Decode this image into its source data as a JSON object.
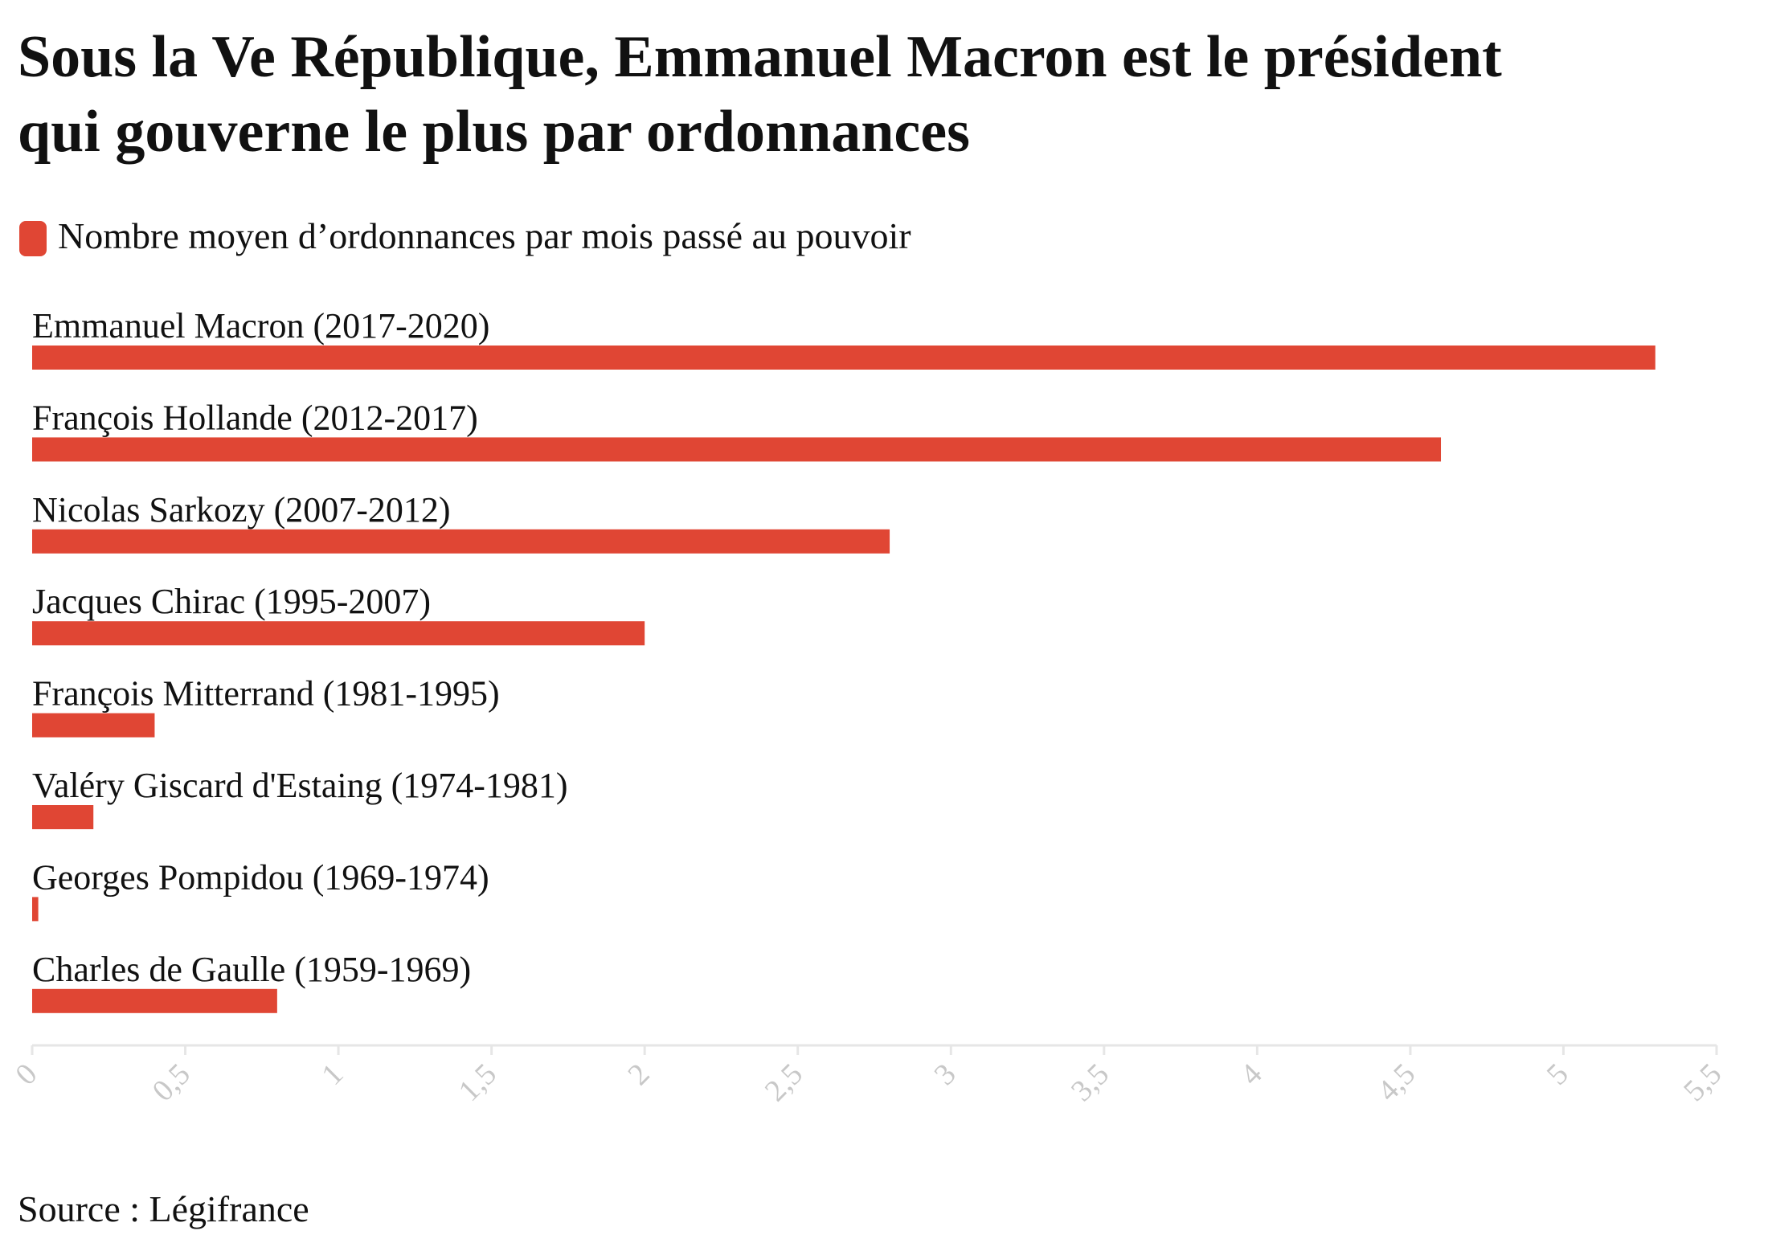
{
  "chart_data": {
    "type": "bar",
    "orientation": "horizontal",
    "title": "Sous la Ve République, Emmanuel Macron est le président",
    "title_line2": "qui gouverne le plus par ordonnances",
    "series_name": "Nombre moyen d’ordonnances par mois passé au pouvoir",
    "color": "#e04634",
    "categories": [
      "Emmanuel Macron (2017-2020)",
      "François Hollande (2012-2017)",
      "Nicolas Sarkozy (2007-2012)",
      "Jacques Chirac (1995-2007)",
      "François Mitterrand (1981-1995)",
      "Valéry Giscard d'Estaing (1974-1981)",
      "Georges Pompidou (1969-1974)",
      "Charles de Gaulle (1959-1969)"
    ],
    "values": [
      5.3,
      4.6,
      2.8,
      2.0,
      0.4,
      0.2,
      0.02,
      0.8
    ],
    "xlim": [
      0,
      5.5
    ],
    "xticks": [
      0,
      {
        "value": 0.5,
        "label": "0,5"
      },
      1,
      {
        "value": 1.5,
        "label": "1,5"
      },
      2,
      {
        "value": 2.5,
        "label": "2,5"
      },
      3,
      {
        "value": 3.5,
        "label": "3,5"
      },
      4,
      {
        "value": 4.5,
        "label": "4,5"
      },
      5,
      {
        "value": 5.5,
        "label": "5,5"
      }
    ],
    "source": "Source : Légifrance"
  }
}
